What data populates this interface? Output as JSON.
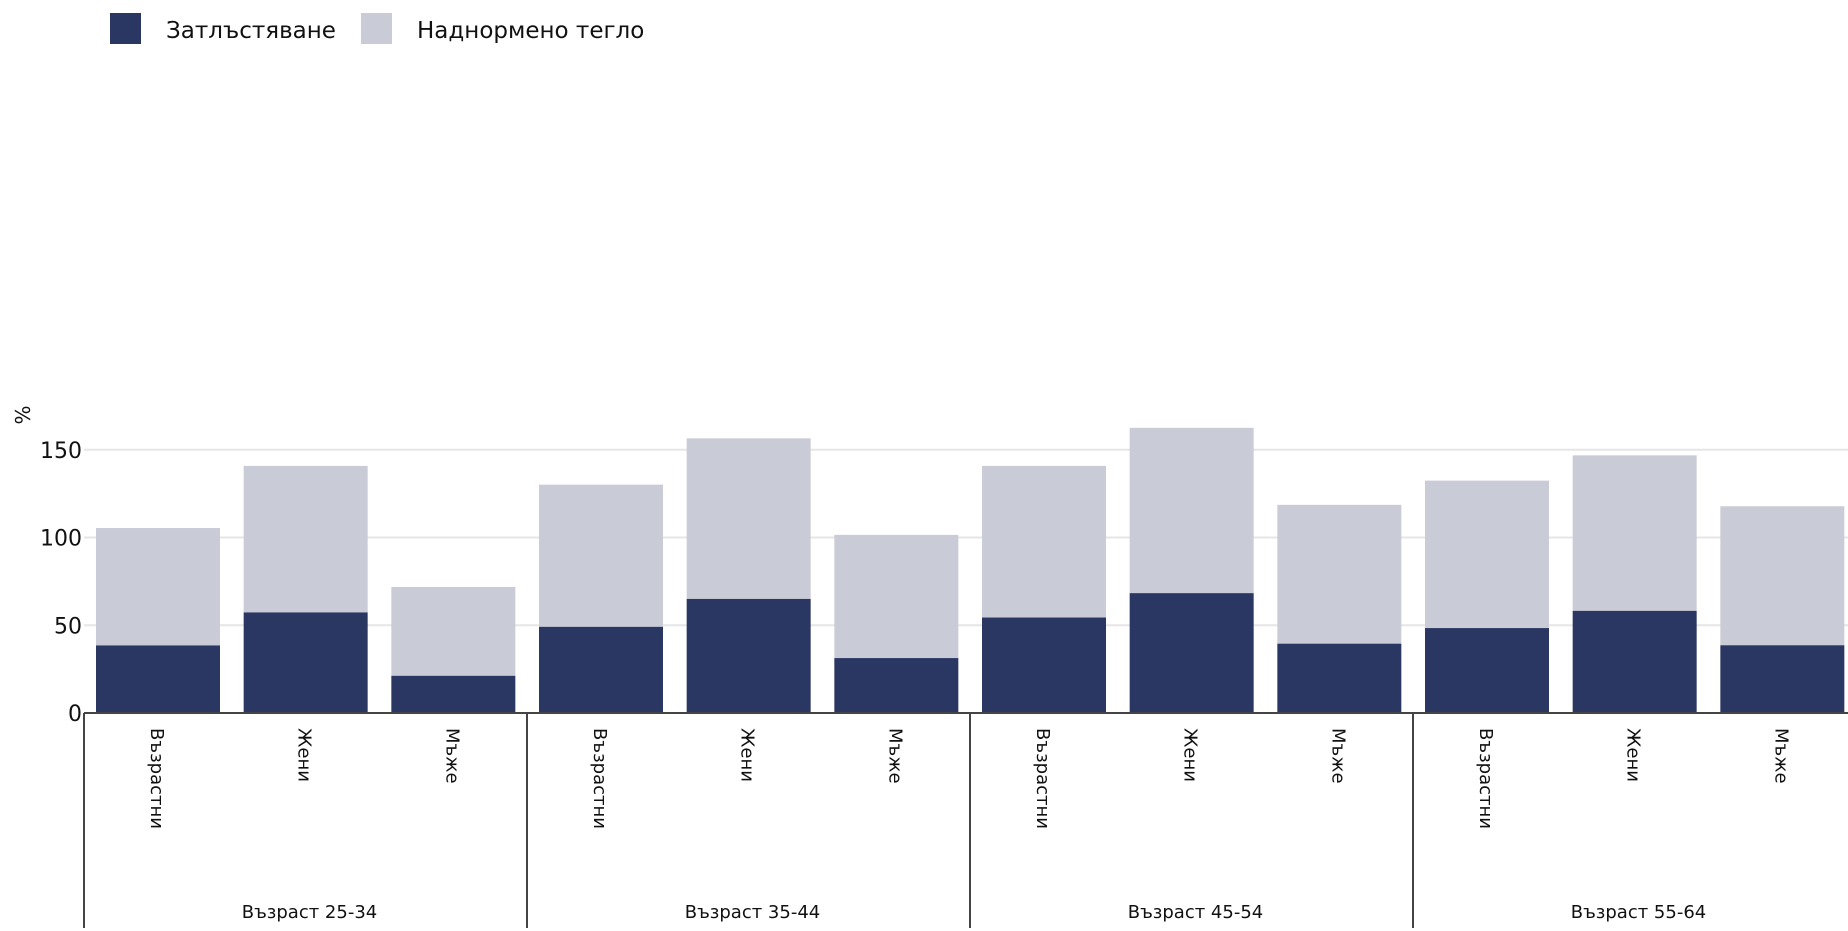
{
  "chart_data": {
    "type": "bar",
    "stacked": true,
    "ylabel": "%",
    "ylim": [
      0,
      170
    ],
    "yticks": [
      0,
      50,
      100,
      150
    ],
    "grid": true,
    "legend_position": "top-left",
    "groups": [
      {
        "label": "Възраст 25-34",
        "categories": [
          "Възрастни",
          "Жени",
          "Мъже"
        ]
      },
      {
        "label": "Възраст 35-44",
        "categories": [
          "Възрастни",
          "Жени",
          "Мъже"
        ]
      },
      {
        "label": "Възраст 45-54",
        "categories": [
          "Възрастни",
          "Жени",
          "Мъже"
        ]
      },
      {
        "label": "Възраст 55-64",
        "categories": [
          "Възрастни",
          "Жени",
          "Мъже"
        ]
      }
    ],
    "series": [
      {
        "name": "Затлъстяване",
        "color": "#2b3763",
        "values": [
          38.5,
          57.3,
          21.2,
          49.1,
          65.0,
          31.3,
          54.4,
          68.3,
          39.5,
          48.4,
          58.2,
          38.6
        ]
      },
      {
        "name": "Наднормено тегло",
        "color": "#c9cbd6",
        "values": [
          66.9,
          83.5,
          50.6,
          81.0,
          91.5,
          70.2,
          86.4,
          94.2,
          79.1,
          84.0,
          88.6,
          79.2
        ]
      }
    ]
  }
}
